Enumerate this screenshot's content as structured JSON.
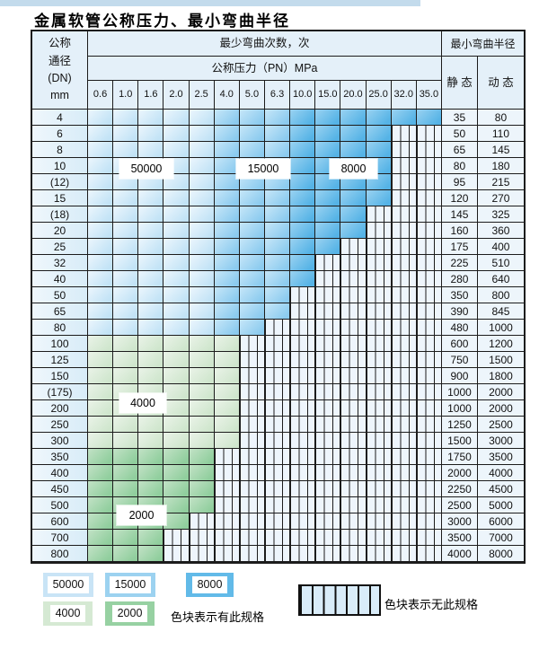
{
  "title": "金属软管公称压力、最小弯曲半径",
  "table": {
    "header": {
      "dn_label": "公称\n通径\n(DN)\nmm",
      "cycles": "最少弯曲次数，次",
      "pressure": "公称压力（PN）MPa",
      "radius": "最小弯曲半径",
      "static": "静 态",
      "dynamic": "动 态",
      "pressure_values": [
        "0.6",
        "1.0",
        "1.6",
        "2.0",
        "2.5",
        "4.0",
        "5.0",
        "6.3",
        "10.0",
        "15.0",
        "20.0",
        "25.0",
        "32.0",
        "35.0"
      ]
    },
    "blue_band_splits": [
      5,
      8
    ],
    "cycles_by_zone": {
      "c1": "50000",
      "c2": "15000",
      "c3": "8000",
      "g1": "4000",
      "g2": "2000"
    },
    "rows": [
      {
        "dn": "4",
        "colored": 14,
        "zone": "b",
        "st": "35",
        "dy": "80"
      },
      {
        "dn": "6",
        "colored": 12,
        "zone": "b",
        "st": "50",
        "dy": "110"
      },
      {
        "dn": "8",
        "colored": 12,
        "zone": "b",
        "st": "65",
        "dy": "145"
      },
      {
        "dn": "10",
        "colored": 12,
        "zone": "b",
        "st": "80",
        "dy": "180"
      },
      {
        "dn": "(12)",
        "colored": 12,
        "zone": "b",
        "st": "95",
        "dy": "215"
      },
      {
        "dn": "15",
        "colored": 12,
        "zone": "b",
        "st": "120",
        "dy": "270"
      },
      {
        "dn": "(18)",
        "colored": 11,
        "zone": "b",
        "st": "145",
        "dy": "325"
      },
      {
        "dn": "20",
        "colored": 11,
        "zone": "b",
        "st": "160",
        "dy": "360"
      },
      {
        "dn": "25",
        "colored": 10,
        "zone": "b",
        "st": "175",
        "dy": "400"
      },
      {
        "dn": "32",
        "colored": 9,
        "zone": "b",
        "st": "225",
        "dy": "510"
      },
      {
        "dn": "40",
        "colored": 9,
        "zone": "b",
        "st": "280",
        "dy": "640"
      },
      {
        "dn": "50",
        "colored": 8,
        "zone": "b",
        "st": "350",
        "dy": "800"
      },
      {
        "dn": "65",
        "colored": 8,
        "zone": "b",
        "st": "390",
        "dy": "845"
      },
      {
        "dn": "80",
        "colored": 7,
        "zone": "b",
        "st": "480",
        "dy": "1000"
      },
      {
        "dn": "100",
        "colored": 6,
        "zone": "g1",
        "st": "600",
        "dy": "1200"
      },
      {
        "dn": "125",
        "colored": 6,
        "zone": "g1",
        "st": "750",
        "dy": "1500"
      },
      {
        "dn": "150",
        "colored": 6,
        "zone": "g1",
        "st": "900",
        "dy": "1800"
      },
      {
        "dn": "(175)",
        "colored": 6,
        "zone": "g1",
        "st": "1000",
        "dy": "2000"
      },
      {
        "dn": "200",
        "colored": 6,
        "zone": "g1",
        "st": "1000",
        "dy": "2000"
      },
      {
        "dn": "250",
        "colored": 6,
        "zone": "g1",
        "st": "1250",
        "dy": "2500"
      },
      {
        "dn": "300",
        "colored": 6,
        "zone": "g1",
        "st": "1500",
        "dy": "3000"
      },
      {
        "dn": "350",
        "colored": 5,
        "zone": "g2",
        "st": "1750",
        "dy": "3500"
      },
      {
        "dn": "400",
        "colored": 5,
        "zone": "g2",
        "st": "2000",
        "dy": "4000"
      },
      {
        "dn": "450",
        "colored": 5,
        "zone": "g2",
        "st": "2250",
        "dy": "4500"
      },
      {
        "dn": "500",
        "colored": 5,
        "zone": "g2",
        "st": "2500",
        "dy": "5000"
      },
      {
        "dn": "600",
        "colored": 4,
        "zone": "g2",
        "st": "3000",
        "dy": "6000"
      },
      {
        "dn": "700",
        "colored": 3,
        "zone": "g2",
        "st": "3500",
        "dy": "7000"
      },
      {
        "dn": "800",
        "colored": 3,
        "zone": "g2",
        "st": "4000",
        "dy": "8000"
      }
    ]
  },
  "overlay_labels": [
    {
      "text": "50000"
    },
    {
      "text": "15000"
    },
    {
      "text": "8000"
    },
    {
      "text": "4000"
    },
    {
      "text": "2000"
    }
  ],
  "legend": {
    "has_spec_swatches": [
      {
        "label": "50000",
        "zone": "c1"
      },
      {
        "label": "15000",
        "zone": "c2"
      },
      {
        "label": "8000",
        "zone": "c3"
      },
      {
        "label": "4000",
        "zone": "g1"
      },
      {
        "label": "2000",
        "zone": "g2"
      }
    ],
    "has_spec_text": "色块表示有此规格",
    "no_spec_text": "色块表示无此规格"
  },
  "colors": {
    "c1core": "#c9e4f6",
    "c2core": "#9cd2f0",
    "c3core": "#62bae8",
    "g1core": "#d5e9d3",
    "g2core": "#97d1a2"
  }
}
